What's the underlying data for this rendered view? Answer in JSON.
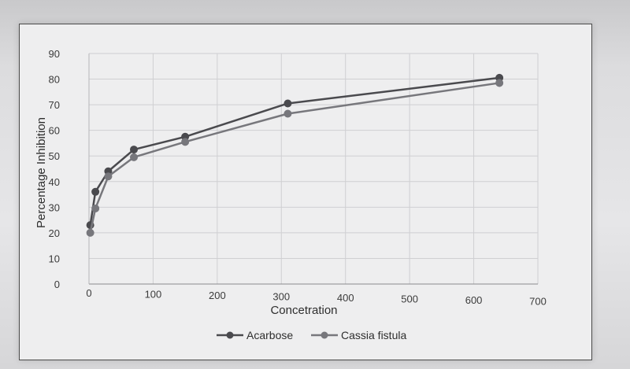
{
  "chart_data": {
    "type": "line",
    "xlabel": "Concetration",
    "ylabel": "Percentage Inhibition",
    "xlim": [
      0,
      700
    ],
    "ylim": [
      0,
      90
    ],
    "xticks": [
      0,
      100,
      200,
      300,
      400,
      500,
      600,
      700
    ],
    "yticks": [
      0,
      10,
      20,
      30,
      40,
      50,
      60,
      70,
      80,
      90
    ],
    "grid": true,
    "legend_position": "bottom",
    "series": [
      {
        "name": "Acarbose",
        "color": "#4a4a4e",
        "x": [
          2,
          10,
          30,
          70,
          150,
          310,
          640
        ],
        "y": [
          23,
          36,
          44,
          52.5,
          57.5,
          70.5,
          80.5
        ]
      },
      {
        "name": "Cassia fistula",
        "color": "#77777c",
        "x": [
          2,
          10,
          30,
          70,
          150,
          310,
          640
        ],
        "y": [
          20,
          29.5,
          42,
          49.5,
          55.5,
          66.5,
          78.5
        ]
      }
    ]
  }
}
